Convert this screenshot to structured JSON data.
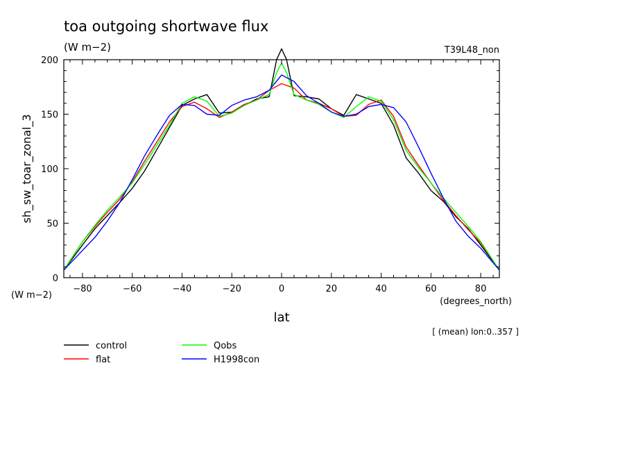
{
  "header": {
    "title": "toa outgoing shortwave flux",
    "units": "(W m−2)",
    "run_label": "T39L48_non"
  },
  "chart_data": {
    "type": "line",
    "title": "toa outgoing shortwave flux",
    "ylabel": "sh_sw_toar_zonal_3",
    "yunits": "(W m−2)",
    "xlabel": "lat",
    "xunits": "(degrees_north)",
    "note": "[ (mean) lon:0..357 ]",
    "xlim": [
      -87.5,
      87.5
    ],
    "ylim": [
      0,
      200
    ],
    "xticks": [
      -80,
      -60,
      -40,
      -20,
      0,
      20,
      40,
      60,
      80
    ],
    "xtick_labels": [
      "−80",
      "−60",
      "−40",
      "−20",
      "0",
      "20",
      "40",
      "60",
      "80"
    ],
    "yticks": [
      0,
      50,
      100,
      150,
      200
    ],
    "ytick_labels": [
      "0",
      "50",
      "100",
      "150",
      "200"
    ],
    "legend_position": "bottom-left",
    "series": [
      {
        "name": "control",
        "color": "#000000",
        "x": [
          -87.5,
          -80,
          -75,
          -70,
          -65,
          -60,
          -55,
          -50,
          -45,
          -40,
          -35,
          -30,
          -25,
          -20,
          -15,
          -10,
          -5,
          -2,
          0,
          2,
          5,
          10,
          15,
          20,
          25,
          30,
          35,
          40,
          45,
          50,
          55,
          60,
          65,
          70,
          75,
          80,
          87.5
        ],
        "y": [
          7,
          30,
          45,
          57,
          69,
          82,
          98,
          118,
          138,
          158,
          164,
          168,
          151,
          152,
          158,
          164,
          166,
          200,
          210,
          200,
          167,
          166,
          164,
          155,
          149,
          168,
          164,
          160,
          140,
          110,
          96,
          80,
          70,
          56,
          45,
          30,
          7
        ]
      },
      {
        "name": "flat",
        "color": "#ff0000",
        "x": [
          -87.5,
          -80,
          -75,
          -70,
          -65,
          -60,
          -55,
          -50,
          -45,
          -40,
          -35,
          -30,
          -25,
          -20,
          -15,
          -10,
          -5,
          0,
          5,
          10,
          15,
          20,
          25,
          30,
          35,
          40,
          45,
          50,
          55,
          60,
          65,
          70,
          75,
          80,
          87.5
        ],
        "y": [
          7,
          33,
          47,
          60,
          72,
          88,
          107,
          125,
          143,
          157,
          161,
          155,
          147,
          152,
          159,
          163,
          172,
          178,
          174,
          163,
          160,
          155,
          148,
          149,
          159,
          163,
          148,
          120,
          103,
          87,
          71,
          57,
          44,
          32,
          7
        ]
      },
      {
        "name": "Qobs",
        "color": "#00ff00",
        "x": [
          -87.5,
          -80,
          -75,
          -70,
          -65,
          -60,
          -55,
          -50,
          -45,
          -40,
          -35,
          -30,
          -25,
          -20,
          -15,
          -10,
          -5,
          -2,
          0,
          2,
          5,
          10,
          15,
          20,
          25,
          30,
          35,
          40,
          45,
          50,
          55,
          60,
          65,
          70,
          75,
          80,
          87.5
        ],
        "y": [
          7,
          33,
          48,
          62,
          74,
          87,
          104,
          122,
          140,
          160,
          166,
          162,
          148,
          151,
          158,
          163,
          168,
          188,
          197,
          188,
          168,
          163,
          159,
          152,
          147,
          157,
          166,
          162,
          145,
          117,
          101,
          87,
          73,
          60,
          47,
          33,
          7
        ]
      },
      {
        "name": "H1998con",
        "color": "#0000ff",
        "x": [
          -87.5,
          -80,
          -75,
          -70,
          -65,
          -60,
          -55,
          -50,
          -45,
          -40,
          -35,
          -30,
          -25,
          -20,
          -15,
          -10,
          -5,
          0,
          5,
          10,
          15,
          20,
          25,
          30,
          35,
          40,
          45,
          50,
          55,
          60,
          65,
          70,
          75,
          80,
          87.5
        ],
        "y": [
          7,
          25,
          37,
          52,
          69,
          90,
          112,
          131,
          149,
          159,
          158,
          150,
          149,
          158,
          163,
          166,
          172,
          186,
          180,
          167,
          160,
          152,
          148,
          150,
          157,
          159,
          156,
          143,
          120,
          96,
          73,
          52,
          38,
          27,
          7
        ]
      }
    ]
  }
}
